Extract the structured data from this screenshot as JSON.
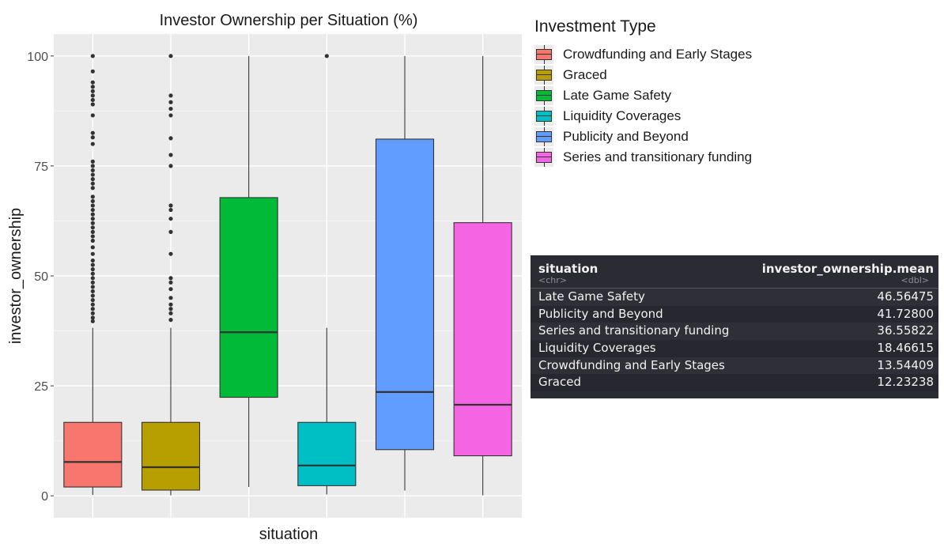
{
  "chart_data": {
    "type": "box",
    "title": "Investor Ownership per Situation (%)",
    "xlabel": "situation",
    "ylabel": "investor_ownership",
    "ylim": [
      -5,
      105
    ],
    "yticks": [
      0,
      25,
      50,
      75,
      100
    ],
    "series": [
      {
        "name": "Crowdfunding and Early Stages",
        "color": "#F8766D",
        "q1": 2.0,
        "median": 7.7,
        "q3": 16.7,
        "whisker_low": 0.2,
        "whisker_high": 38.2,
        "outliers": [
          39.7,
          40.5,
          41.5,
          42.5,
          43.5,
          44.5,
          45.5,
          46.5,
          47.5,
          48.5,
          49.5,
          50.5,
          51.5,
          52.5,
          53.5,
          55,
          56.5,
          58,
          59,
          60,
          61,
          62,
          63,
          64,
          65,
          66,
          67,
          68,
          70,
          71,
          72,
          73,
          74,
          75,
          76,
          80,
          81.5,
          82.5,
          86.5,
          89,
          90,
          91,
          92,
          93,
          94,
          96.5,
          100
        ]
      },
      {
        "name": "Graced",
        "color": "#B79F00",
        "q1": 1.3,
        "median": 6.5,
        "q3": 16.7,
        "whisker_low": 0.1,
        "whisker_high": 38.2,
        "outliers": [
          40,
          41.5,
          42.5,
          43.5,
          45,
          47,
          48.5,
          49.5,
          55,
          60,
          63,
          65,
          66,
          75,
          77.5,
          81.3,
          86.5,
          88,
          89.5,
          91,
          100
        ]
      },
      {
        "name": "Late Game Safety",
        "color": "#00BA38",
        "q1": 22.4,
        "median": 37.2,
        "q3": 67.8,
        "whisker_low": 2.0,
        "whisker_high": 100,
        "outliers": []
      },
      {
        "name": "Liquidity Coverages",
        "color": "#00BFC4",
        "q1": 2.3,
        "median": 6.9,
        "q3": 16.7,
        "whisker_low": 0.3,
        "whisker_high": 38.2,
        "outliers": [
          100
        ]
      },
      {
        "name": "Publicity and Beyond",
        "color": "#619CFF",
        "q1": 10.5,
        "median": 23.6,
        "q3": 81.1,
        "whisker_low": 1.2,
        "whisker_high": 100,
        "outliers": []
      },
      {
        "name": "Series and transitionary funding",
        "color": "#F564E3",
        "q1": 9.1,
        "median": 20.7,
        "q3": 62.1,
        "whisker_low": 0.1,
        "whisker_high": 100,
        "outliers": []
      }
    ]
  },
  "legend": {
    "title": "Investment Type",
    "items": [
      {
        "label": "Crowdfunding and Early Stages",
        "color": "#F8766D"
      },
      {
        "label": "Graced",
        "color": "#B79F00"
      },
      {
        "label": "Late Game Safety",
        "color": "#00BA38"
      },
      {
        "label": "Liquidity Coverages",
        "color": "#00BFC4"
      },
      {
        "label": "Publicity and Beyond",
        "color": "#619CFF"
      },
      {
        "label": "Series and transitionary funding",
        "color": "#F564E3"
      }
    ]
  },
  "table": {
    "col1": "situation",
    "col2": "investor_ownership.mean",
    "type1": "<chr>",
    "type2": "<dbl>",
    "rows": [
      {
        "situation": "Late Game Safety",
        "mean": "46.56475"
      },
      {
        "situation": "Publicity and Beyond",
        "mean": "41.72800"
      },
      {
        "situation": "Series and transitionary funding",
        "mean": "36.55822"
      },
      {
        "situation": "Liquidity Coverages",
        "mean": "18.46615"
      },
      {
        "situation": "Crowdfunding and Early Stages",
        "mean": "13.54409"
      },
      {
        "situation": "Graced",
        "mean": "12.23238"
      }
    ]
  }
}
